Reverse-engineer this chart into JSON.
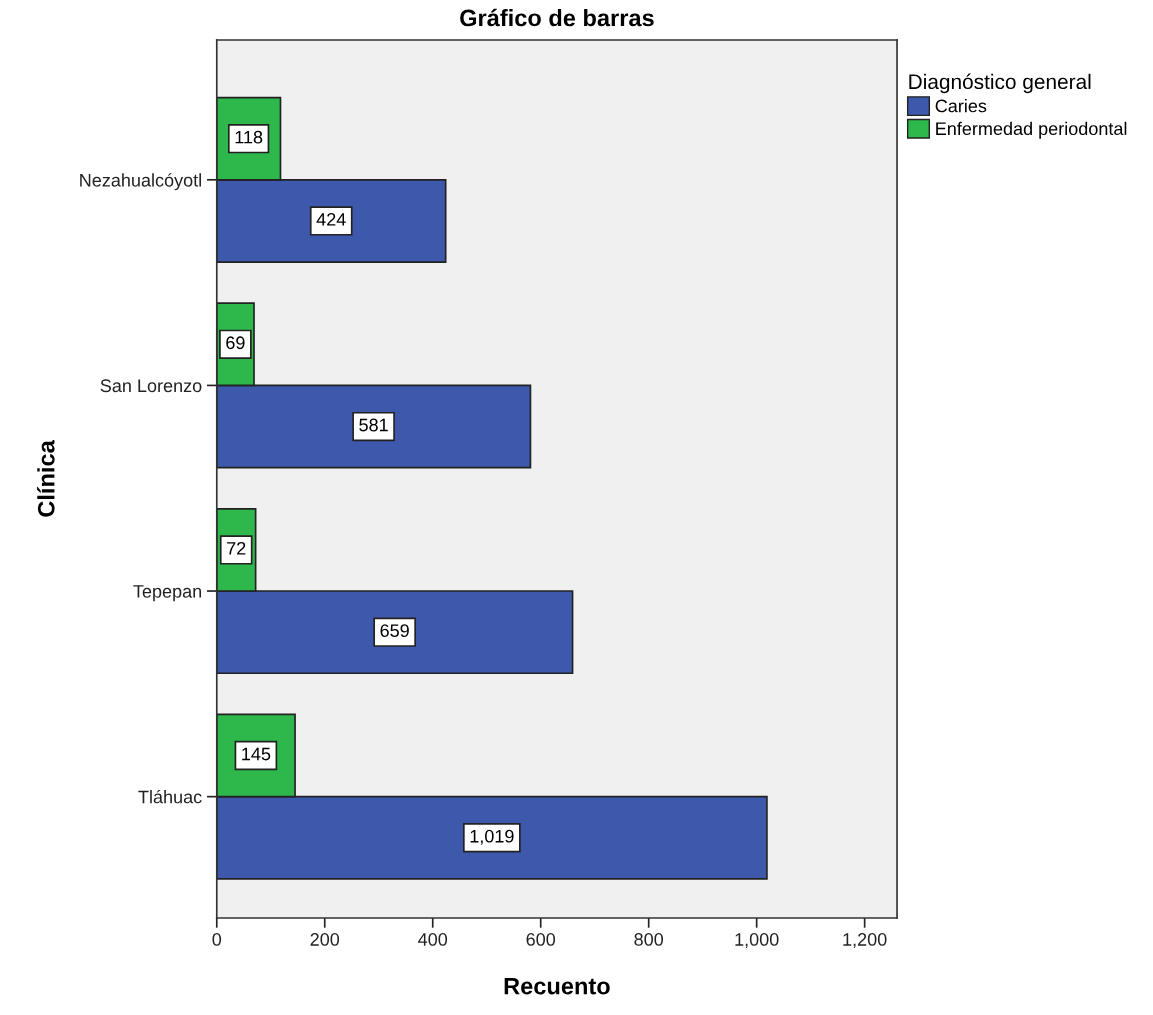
{
  "chart_data": {
    "type": "bar",
    "orientation": "horizontal",
    "title": "Gráfico de barras",
    "xlabel": "Recuento",
    "ylabel": "Clínica",
    "legend_title": "Diagnóstico general",
    "categories": [
      "Nezahualcóyotl",
      "San Lorenzo",
      "Tepepan",
      "Tláhuac"
    ],
    "series": [
      {
        "name": "Caries",
        "color": "#3e58ac",
        "values": [
          424,
          581,
          659,
          1019
        ],
        "value_labels": [
          "424",
          "581",
          "659",
          "1,019"
        ]
      },
      {
        "name": "Enfermedad periodontal",
        "color": "#2eb84b",
        "values": [
          118,
          69,
          72,
          145
        ],
        "value_labels": [
          "118",
          "69",
          "72",
          "145"
        ]
      }
    ],
    "xlim": [
      0,
      1260
    ],
    "xticks": [
      0,
      200,
      400,
      600,
      800,
      {
        "value": 1000,
        "label": "1,000"
      },
      {
        "value": 1200,
        "label": "1,200"
      }
    ],
    "grid": false,
    "legend": "top right"
  }
}
